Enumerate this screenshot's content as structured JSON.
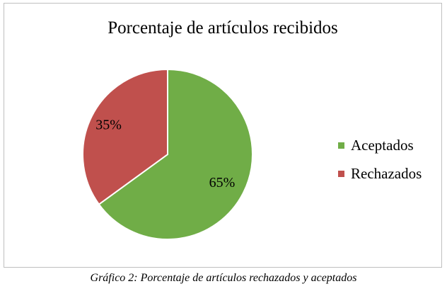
{
  "chart_data": {
    "type": "pie",
    "title": "Porcentaje de artículos recibidos",
    "categories": [
      "Aceptados",
      "Rechazados"
    ],
    "values": [
      65,
      35
    ],
    "labels": [
      "65%",
      "35%"
    ],
    "colors": [
      "#70ad47",
      "#c0504d"
    ],
    "legend_position": "right"
  },
  "caption": "Gráfico 2: Porcentaje de artículos rechazados y aceptados"
}
